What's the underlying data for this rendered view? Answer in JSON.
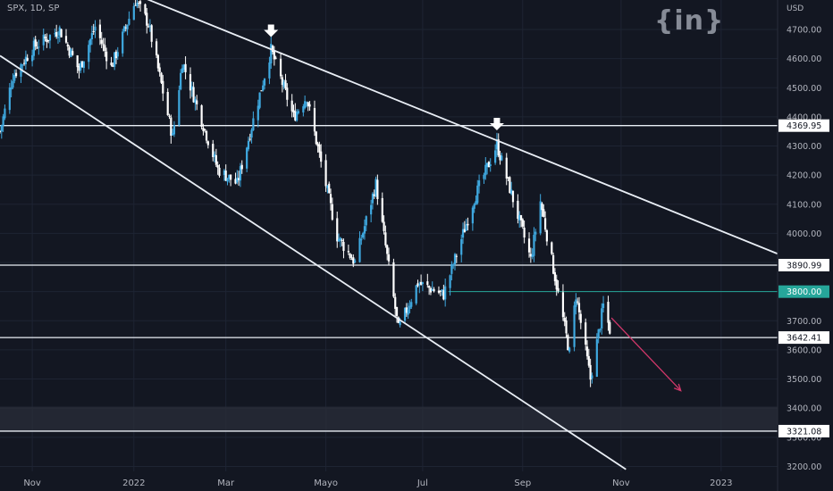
{
  "header": {
    "symbol_label": "SPX, 1D, SP",
    "currency": "USD",
    "watermark": "{in}"
  },
  "colors": {
    "background": "#131722",
    "candle_up": "#3fa9e0",
    "candle_down": "#ffffff",
    "lines": "#e9eef5",
    "highlight": "#26a69a",
    "projection": "#d1376a"
  },
  "chart_data": {
    "type": "candlestick",
    "title": "",
    "x_labels": [
      "Nov",
      "2022",
      "Mar",
      "Mayo",
      "Jul",
      "Sep",
      "Nov",
      "2023"
    ],
    "y_ticks": [
      3200,
      3300,
      3400,
      3500,
      3600,
      3700,
      3800,
      3900,
      4000,
      4100,
      4200,
      4300,
      4400,
      4500,
      4600,
      4700
    ],
    "y_range": [
      3180,
      4800
    ],
    "horizontal_levels": [
      {
        "label": "4369.95",
        "value": 4369.95
      },
      {
        "label": "3890.99",
        "value": 3890.99
      },
      {
        "label": "3642.41",
        "value": 3642.41
      },
      {
        "label": "3321.08",
        "value": 3321.08
      }
    ],
    "resistance_level": {
      "label": "3800.00",
      "value": 3800
    },
    "support_zone": [
      3321.08,
      3405
    ],
    "price_path": [
      [
        "2021-10-12",
        4350
      ],
      [
        "2021-10-20",
        4540
      ],
      [
        "2021-11-02",
        4640
      ],
      [
        "2021-11-18",
        4700
      ],
      [
        "2021-11-30",
        4560
      ],
      [
        "2021-12-10",
        4710
      ],
      [
        "2021-12-20",
        4570
      ],
      [
        "2022-01-04",
        4800
      ],
      [
        "2022-01-12",
        4720
      ],
      [
        "2022-01-27",
        4330
      ],
      [
        "2022-02-02",
        4590
      ],
      [
        "2022-02-24",
        4220
      ],
      [
        "2022-03-08",
        4170
      ],
      [
        "2022-03-29",
        4630
      ],
      [
        "2022-04-12",
        4400
      ],
      [
        "2022-04-20",
        4470
      ],
      [
        "2022-05-09",
        3990
      ],
      [
        "2022-05-20",
        3900
      ],
      [
        "2022-06-02",
        4170
      ],
      [
        "2022-06-16",
        3670
      ],
      [
        "2022-06-28",
        3830
      ],
      [
        "2022-07-14",
        3790
      ],
      [
        "2022-08-02",
        4120
      ],
      [
        "2022-08-16",
        4305
      ],
      [
        "2022-09-06",
        3910
      ],
      [
        "2022-09-12",
        4110
      ],
      [
        "2022-09-30",
        3590
      ],
      [
        "2022-10-04",
        3790
      ],
      [
        "2022-10-13",
        3500
      ],
      [
        "2022-10-21",
        3752
      ],
      [
        "2022-10-25",
        3670
      ]
    ],
    "trendlines": [
      {
        "name": "upper",
        "from": [
          "2022-01-04",
          4820
        ],
        "to": [
          "2023-02-06",
          3930
        ]
      },
      {
        "name": "lower",
        "from": [
          "2021-10-12",
          4610
        ],
        "to": [
          "2022-11-04",
          3190
        ]
      }
    ],
    "arrows": [
      {
        "date": "2022-03-29",
        "price": 4680
      },
      {
        "date": "2022-08-16",
        "price": 4360
      }
    ],
    "projection": {
      "from": [
        "2022-10-26",
        3710
      ],
      "to": [
        "2022-12-08",
        3460
      ]
    }
  }
}
